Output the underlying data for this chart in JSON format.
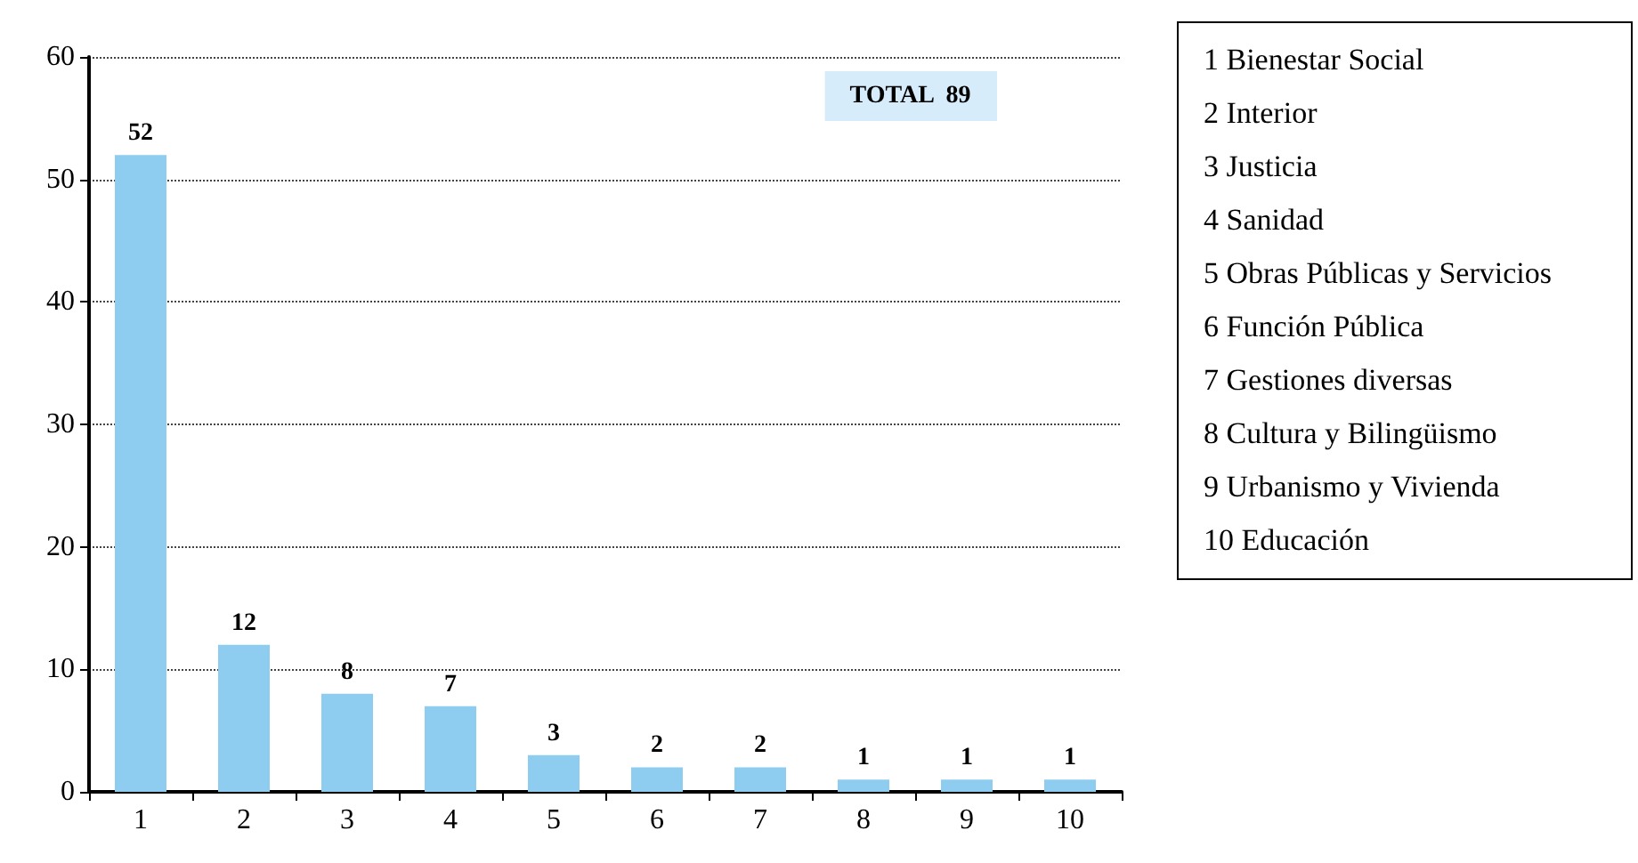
{
  "chart_data": {
    "type": "bar",
    "categories": [
      "1",
      "2",
      "3",
      "4",
      "5",
      "6",
      "7",
      "8",
      "9",
      "10"
    ],
    "values": [
      52,
      12,
      8,
      7,
      3,
      2,
      2,
      1,
      1,
      1
    ],
    "color": "#8ecdf0",
    "data_labels": true,
    "ylim": [
      0,
      60
    ],
    "yticks": [
      0,
      10,
      20,
      30,
      40,
      50,
      60
    ],
    "grid": "y",
    "annotations": [
      "TOTAL  89",
      "1 Bienestar Social",
      "2 Interior",
      "3 Justicia",
      "4 Sanidad",
      "5 Obras Públicas y Servicios",
      "6 Función Pública",
      "7 Gestiones diversas",
      "8 Cultura y Bilingüismo",
      "9 Urbanismo y Vivienda",
      "10 Educación"
    ]
  }
}
